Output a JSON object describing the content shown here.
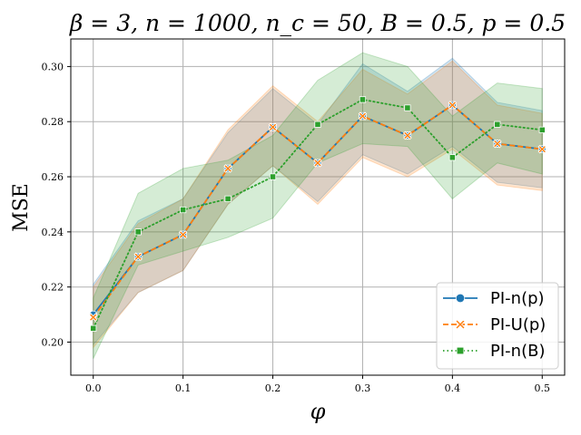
{
  "chart_data": {
    "type": "line",
    "title": "β = 3, n = 1000, n_c = 50, B = 0.5, p = 0.5",
    "xlabel": "φ",
    "ylabel": "MSE",
    "xlim": [
      -0.025,
      0.525
    ],
    "ylim": [
      0.188,
      0.31
    ],
    "xticks": [
      0.0,
      0.1,
      0.2,
      0.3,
      0.4,
      0.5
    ],
    "xtick_labels": [
      "0.0",
      "0.1",
      "0.2",
      "0.3",
      "0.4",
      "0.5"
    ],
    "yticks": [
      0.2,
      0.22,
      0.24,
      0.26,
      0.28,
      0.3
    ],
    "ytick_labels": [
      "0.20",
      "0.22",
      "0.24",
      "0.26",
      "0.28",
      "0.30"
    ],
    "grid": true,
    "legend_position": "bottom-right",
    "x": [
      0.0,
      0.05,
      0.1,
      0.15,
      0.2,
      0.25,
      0.3,
      0.35,
      0.4,
      0.45,
      0.5
    ],
    "series": [
      {
        "name": "PI-n(p)",
        "color": "#1f77b4",
        "linestyle": "solid",
        "marker": "circle",
        "values": [
          0.21,
          0.231,
          0.239,
          0.263,
          0.278,
          0.265,
          0.282,
          0.275,
          0.286,
          0.272,
          0.27
        ],
        "lower": [
          0.199,
          0.218,
          0.226,
          0.25,
          0.264,
          0.251,
          0.268,
          0.261,
          0.271,
          0.258,
          0.256
        ],
        "upper": [
          0.221,
          0.244,
          0.252,
          0.276,
          0.292,
          0.279,
          0.301,
          0.291,
          0.303,
          0.287,
          0.284
        ]
      },
      {
        "name": "PI-U(p)",
        "color": "#ff7f0e",
        "linestyle": "dashed",
        "marker": "x",
        "values": [
          0.209,
          0.231,
          0.239,
          0.263,
          0.278,
          0.265,
          0.282,
          0.275,
          0.286,
          0.272,
          0.27
        ],
        "lower": [
          0.198,
          0.218,
          0.226,
          0.25,
          0.264,
          0.25,
          0.267,
          0.26,
          0.27,
          0.257,
          0.255
        ],
        "upper": [
          0.22,
          0.243,
          0.252,
          0.277,
          0.293,
          0.28,
          0.299,
          0.29,
          0.302,
          0.286,
          0.283
        ]
      },
      {
        "name": "PI-n(B)",
        "color": "#2ca02c",
        "linestyle": "dotted",
        "marker": "square",
        "values": [
          0.205,
          0.24,
          0.248,
          0.252,
          0.26,
          0.279,
          0.288,
          0.285,
          0.267,
          0.279,
          0.277
        ],
        "lower": [
          0.194,
          0.228,
          0.233,
          0.238,
          0.245,
          0.265,
          0.272,
          0.271,
          0.252,
          0.265,
          0.261
        ],
        "upper": [
          0.216,
          0.254,
          0.263,
          0.266,
          0.275,
          0.295,
          0.305,
          0.3,
          0.282,
          0.294,
          0.292
        ]
      }
    ]
  }
}
